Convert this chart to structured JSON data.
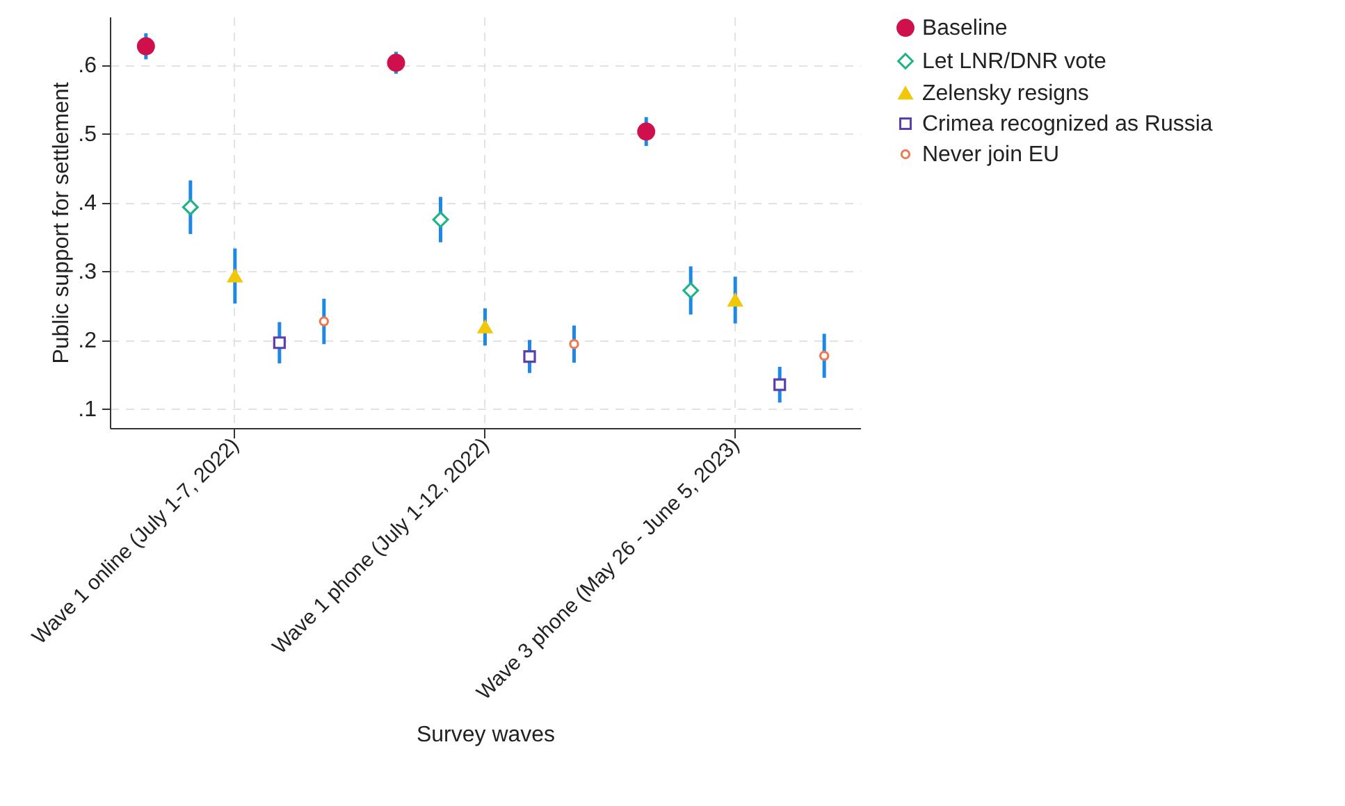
{
  "chart_data": {
    "type": "scatter",
    "xlabel": "Survey waves",
    "ylabel": "Public support for settlement",
    "categories": [
      "Wave 1 online (July 1-7, 2022)",
      "Wave 1 phone (July 1-12, 2022)",
      "Wave 3 phone (May 26 - June 5, 2023)"
    ],
    "series": [
      {
        "name": "Baseline",
        "color": "#d0104c",
        "marker": "circle",
        "values": [
          0.627,
          0.603,
          0.503
        ],
        "errors": [
          0.019,
          0.016,
          0.021
        ]
      },
      {
        "name": "Let LNR/DNR vote",
        "color": "#1fb387",
        "marker": "diamond",
        "values": [
          0.393,
          0.375,
          0.272
        ],
        "errors": [
          0.039,
          0.033,
          0.035
        ]
      },
      {
        "name": "Zelensky resigns",
        "color": "#f0c808",
        "marker": "triangle",
        "values": [
          0.293,
          0.219,
          0.258
        ],
        "errors": [
          0.04,
          0.027,
          0.034
        ]
      },
      {
        "name": "Crimea recognized as Russia",
        "color": "#5b3fb0",
        "marker": "square",
        "values": [
          0.196,
          0.176,
          0.135
        ],
        "errors": [
          0.03,
          0.024,
          0.026
        ]
      },
      {
        "name": "Never join EU",
        "color": "#f07a50",
        "marker": "circle",
        "values": [
          0.227,
          0.194,
          0.177
        ],
        "errors": [
          0.033,
          0.027,
          0.032
        ]
      }
    ],
    "ylim": [
      0.072,
      0.67
    ],
    "yticks": [
      {
        "value": 0.1,
        "label": ".1"
      },
      {
        "value": 0.2,
        "label": ".2"
      },
      {
        "value": 0.3,
        "label": ".3"
      },
      {
        "value": 0.4,
        "label": ".4"
      },
      {
        "value": 0.5,
        "label": ".5"
      },
      {
        "value": 0.6,
        "label": ".6"
      }
    ],
    "grid": true,
    "legend": "top right"
  }
}
